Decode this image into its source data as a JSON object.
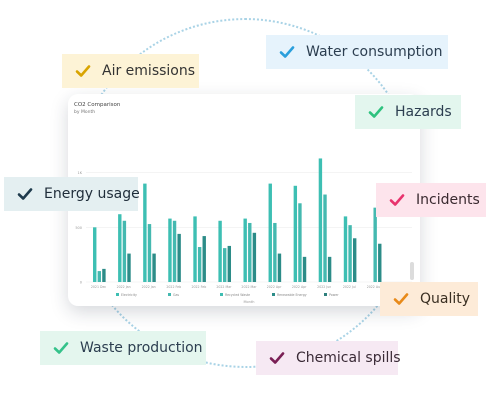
{
  "tags": [
    {
      "name": "air-emissions",
      "label": "Air emissions",
      "bg": "#fdf3d6",
      "fg": "#333333",
      "check": "#d9a400"
    },
    {
      "name": "water-consumption",
      "label": "Water consumption",
      "bg": "#e6f3fc",
      "fg": "#2c3e50",
      "check": "#2a9fdc"
    },
    {
      "name": "hazards",
      "label": "Hazards",
      "bg": "#e3f6ee",
      "fg": "#2c3e50",
      "check": "#2ec27e"
    },
    {
      "name": "energy-usage",
      "label": "Energy usage",
      "bg": "#e4eff1",
      "fg": "#1f2d3a",
      "check": "#1f3b4d"
    },
    {
      "name": "incidents",
      "label": "Incidents",
      "bg": "#fde4ec",
      "fg": "#3a2a30",
      "check": "#e8336d"
    },
    {
      "name": "quality",
      "label": "Quality",
      "bg": "#fdebd8",
      "fg": "#3a2f22",
      "check": "#e88a1a"
    },
    {
      "name": "waste-production",
      "label": "Waste production",
      "bg": "#e4f6ee",
      "fg": "#2c3e50",
      "check": "#34c28a"
    },
    {
      "name": "chemical-spills",
      "label": "Chemical spills",
      "bg": "#f6e9f3",
      "fg": "#3a2a36",
      "check": "#7a1f55"
    }
  ],
  "chart_data": {
    "type": "bar",
    "title": "CO2 Comparison",
    "subtitle": "by Month",
    "yticks": [
      "1K",
      "500",
      "0"
    ],
    "xlabel": "Month",
    "categories": [
      "2021 Dec",
      "2022 Jan",
      "2022 Jan",
      "2022 Feb",
      "2022 Feb",
      "2022 Mar",
      "2022 Mar",
      "2022 Apr",
      "2022 Apr",
      "2022 Jun",
      "2022 Jul",
      "2022 Aug",
      "2023 Mar"
    ],
    "ylim": [
      0,
      1500
    ],
    "series": [
      {
        "name": "Electricity",
        "color": "#3dbfb3",
        "values": [
          500,
          620,
          900,
          580,
          600,
          560,
          580,
          900,
          880,
          1130,
          600,
          0,
          0
        ]
      },
      {
        "name": "Gas",
        "color": "#44b9b0",
        "values": [
          100,
          560,
          530,
          560,
          320,
          310,
          540,
          540,
          720,
          800,
          520,
          680,
          0
        ]
      },
      {
        "name": "Recycled Waste",
        "color": "#3fbdb2",
        "values": [
          0,
          0,
          0,
          0,
          0,
          0,
          0,
          0,
          0,
          0,
          0,
          0,
          0
        ]
      },
      {
        "name": "Renewable Energy",
        "color": "#2c8c88",
        "values": [
          120,
          260,
          260,
          440,
          420,
          330,
          450,
          260,
          230,
          230,
          400,
          350,
          0
        ]
      },
      {
        "name": "Power",
        "color": "#2e7f7c",
        "values": [
          0,
          0,
          0,
          0,
          0,
          0,
          0,
          0,
          0,
          0,
          0,
          0,
          0
        ]
      }
    ],
    "legend": [
      "Electricity",
      "Gas",
      "Recycled Waste",
      "Renewable Energy",
      "Power"
    ],
    "legend_position": "bottom",
    "grid": true
  }
}
